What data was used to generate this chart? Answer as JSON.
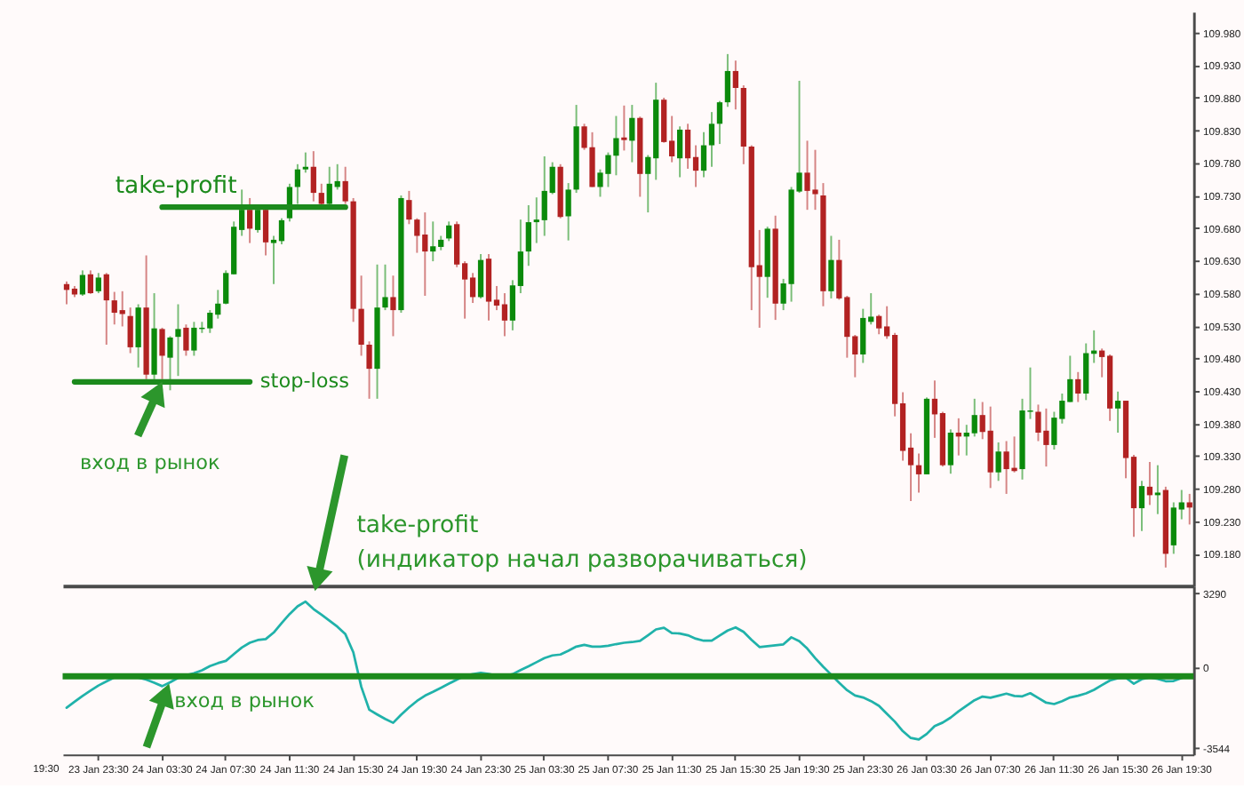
{
  "chart_data": [
    {
      "type": "candlestick",
      "categories": [
        null,
        null,
        null,
        null,
        "23 Jan 23:30",
        null,
        null,
        null,
        null,
        null,
        null,
        null,
        "24 Jan 03:30",
        null,
        null,
        null,
        null,
        null,
        null,
        null,
        "24 Jan 07:30",
        null,
        null,
        null,
        null,
        null,
        null,
        null,
        "24 Jan 11:30",
        null,
        null,
        null,
        null,
        null,
        null,
        null,
        "24 Jan 15:30",
        null,
        null,
        null,
        null,
        null,
        null,
        null,
        "24 Jan 19:30",
        null,
        null,
        null,
        null,
        null,
        null,
        null,
        "24 Jan 23:30",
        null,
        null,
        null,
        null,
        null,
        null,
        null,
        "25 Jan 03:30",
        null,
        null,
        null,
        null,
        null,
        null,
        null,
        "25 Jan 07:30",
        null,
        null,
        null,
        null,
        null,
        null,
        null,
        "25 Jan 11:30",
        null,
        null,
        null,
        null,
        null,
        null,
        null,
        "25 Jan 15:30",
        null,
        null,
        null,
        null,
        null,
        null,
        null,
        "25 Jan 19:30",
        null,
        null,
        null,
        null,
        null,
        null,
        null,
        "25 Jan 23:30",
        null,
        null,
        null,
        null,
        null,
        null,
        null,
        "26 Jan 03:30",
        null,
        null,
        null,
        null,
        null,
        null,
        null,
        "26 Jan 07:30",
        null,
        null,
        null,
        null,
        null,
        null,
        null,
        "26 Jan 11:30",
        null,
        null,
        null,
        null,
        null,
        null,
        null,
        "26 Jan 15:30",
        null,
        null,
        null,
        null,
        null,
        null,
        null,
        "26 Jan 19:30",
        null
      ],
      "ohlc": [
        [
          109.594,
          109.598,
          109.563,
          109.585
        ],
        [
          109.587,
          109.591,
          109.574,
          109.578
        ],
        [
          109.578,
          109.615,
          109.576,
          109.608
        ],
        [
          109.609,
          109.615,
          109.579,
          109.58
        ],
        [
          109.583,
          109.611,
          109.58,
          109.604
        ],
        [
          109.609,
          109.611,
          109.501,
          109.569
        ],
        [
          109.569,
          109.582,
          109.532,
          109.55
        ],
        [
          109.554,
          109.583,
          109.529,
          109.548
        ],
        [
          109.545,
          109.558,
          109.488,
          109.497
        ],
        [
          109.497,
          109.563,
          109.466,
          109.558
        ],
        [
          109.558,
          109.638,
          109.448,
          109.455
        ],
        [
          109.455,
          109.58,
          109.448,
          109.526
        ],
        [
          109.525,
          109.527,
          109.448,
          109.484
        ],
        [
          109.481,
          109.514,
          109.431,
          109.512
        ],
        [
          109.513,
          109.563,
          109.453,
          109.525
        ],
        [
          109.527,
          109.532,
          109.484,
          109.492
        ],
        [
          109.492,
          109.536,
          109.484,
          109.527
        ],
        [
          109.525,
          109.536,
          109.519,
          109.527
        ],
        [
          109.526,
          109.554,
          109.519,
          109.55
        ],
        [
          109.547,
          109.585,
          109.541,
          109.564
        ],
        [
          109.564,
          109.615,
          109.563,
          109.611
        ],
        [
          109.609,
          109.69,
          109.609,
          109.682
        ],
        [
          109.677,
          109.739,
          109.668,
          109.708
        ],
        [
          109.708,
          109.726,
          109.657,
          109.679
        ],
        [
          109.677,
          109.712,
          109.673,
          109.708
        ],
        [
          109.708,
          109.712,
          109.638,
          109.658
        ],
        [
          109.657,
          109.668,
          109.594,
          109.662
        ],
        [
          109.66,
          109.695,
          109.655,
          109.692
        ],
        [
          109.695,
          109.748,
          109.69,
          109.743
        ],
        [
          109.743,
          109.778,
          109.717,
          109.77
        ],
        [
          109.77,
          109.796,
          109.765,
          109.774
        ],
        [
          109.774,
          109.798,
          109.721,
          109.734
        ],
        [
          109.734,
          109.748,
          109.712,
          109.717
        ],
        [
          109.717,
          109.774,
          109.712,
          109.748
        ],
        [
          109.743,
          109.778,
          109.739,
          109.752
        ],
        [
          109.752,
          109.774,
          109.717,
          109.721
        ],
        [
          109.721,
          109.726,
          109.536,
          109.556
        ],
        [
          109.556,
          109.607,
          109.484,
          109.501
        ],
        [
          109.501,
          109.506,
          109.418,
          109.464
        ],
        [
          109.464,
          109.624,
          109.418,
          109.558
        ],
        [
          109.558,
          109.624,
          109.554,
          109.574
        ],
        [
          109.574,
          109.607,
          109.514,
          109.554
        ],
        [
          109.554,
          109.73,
          109.55,
          109.726
        ],
        [
          109.723,
          109.737,
          109.686,
          109.693
        ],
        [
          109.693,
          109.695,
          109.642,
          109.668
        ],
        [
          109.67,
          109.704,
          109.576,
          109.644
        ],
        [
          109.644,
          109.69,
          109.629,
          109.652
        ],
        [
          109.651,
          109.668,
          109.646,
          109.662
        ],
        [
          109.664,
          109.69,
          109.66,
          109.684
        ],
        [
          109.686,
          109.69,
          109.62,
          109.624
        ],
        [
          109.626,
          109.629,
          109.541,
          109.601
        ],
        [
          109.604,
          109.611,
          109.565,
          109.574
        ],
        [
          109.574,
          109.64,
          109.572,
          109.631
        ],
        [
          109.633,
          109.64,
          109.538,
          109.567
        ],
        [
          109.57,
          109.591,
          109.554,
          109.561
        ],
        [
          109.563,
          109.58,
          109.514,
          109.538
        ],
        [
          109.538,
          109.6,
          109.523,
          109.592
        ],
        [
          109.591,
          109.693,
          109.58,
          109.644
        ],
        [
          109.644,
          109.715,
          109.622,
          109.689
        ],
        [
          109.689,
          109.727,
          109.657,
          109.693
        ],
        [
          109.692,
          109.79,
          109.668,
          109.737
        ],
        [
          109.734,
          109.781,
          109.732,
          109.774
        ],
        [
          109.774,
          109.778,
          109.695,
          109.697
        ],
        [
          109.698,
          109.749,
          109.661,
          109.739
        ],
        [
          109.739,
          109.869,
          109.734,
          109.836
        ],
        [
          109.836,
          109.84,
          109.8,
          109.803
        ],
        [
          109.804,
          109.827,
          109.743,
          109.743
        ],
        [
          109.743,
          109.77,
          109.728,
          109.765
        ],
        [
          109.763,
          109.796,
          109.743,
          109.792
        ],
        [
          109.791,
          109.852,
          109.761,
          109.818
        ],
        [
          109.819,
          109.868,
          109.799,
          109.815
        ],
        [
          109.814,
          109.869,
          109.781,
          109.849
        ],
        [
          109.849,
          109.851,
          109.728,
          109.763
        ],
        [
          109.763,
          109.792,
          109.704,
          109.789
        ],
        [
          109.787,
          109.903,
          109.754,
          109.877
        ],
        [
          109.877,
          109.88,
          109.811,
          109.812
        ],
        [
          109.814,
          109.852,
          109.781,
          109.79
        ],
        [
          109.787,
          109.836,
          109.758,
          109.831
        ],
        [
          109.831,
          109.84,
          109.771,
          109.787
        ],
        [
          109.789,
          109.807,
          109.743,
          109.768
        ],
        [
          109.768,
          109.827,
          109.758,
          109.807
        ],
        [
          109.807,
          109.858,
          109.774,
          109.84
        ],
        [
          109.84,
          109.875,
          109.809,
          109.873
        ],
        [
          109.873,
          109.947,
          109.866,
          109.921
        ],
        [
          109.921,
          109.937,
          109.862,
          109.895
        ],
        [
          109.895,
          109.899,
          109.778,
          109.805
        ],
        [
          109.805,
          109.807,
          109.554,
          109.62
        ],
        [
          109.623,
          109.677,
          109.527,
          109.605
        ],
        [
          109.605,
          109.682,
          109.573,
          109.679
        ],
        [
          109.679,
          109.699,
          109.539,
          109.564
        ],
        [
          109.564,
          109.602,
          109.554,
          109.595
        ],
        [
          109.594,
          109.743,
          109.567,
          109.739
        ],
        [
          109.736,
          109.906,
          109.734,
          109.765
        ],
        [
          109.765,
          109.814,
          109.708,
          109.737
        ],
        [
          109.739,
          109.8,
          109.708,
          109.732
        ],
        [
          109.73,
          109.749,
          109.56,
          109.583
        ],
        [
          109.583,
          109.668,
          109.572,
          109.631
        ],
        [
          109.631,
          109.662,
          109.57,
          109.572
        ],
        [
          109.574,
          109.576,
          109.481,
          109.513
        ],
        [
          109.514,
          109.516,
          109.451,
          109.486
        ],
        [
          109.486,
          109.556,
          109.473,
          109.542
        ],
        [
          109.536,
          109.58,
          109.532,
          109.544
        ],
        [
          109.545,
          109.547,
          109.517,
          109.526
        ],
        [
          109.529,
          109.56,
          109.51,
          109.514
        ],
        [
          109.516,
          109.519,
          109.391,
          109.41
        ],
        [
          109.411,
          109.428,
          109.323,
          109.338
        ],
        [
          109.343,
          109.365,
          109.261,
          109.316
        ],
        [
          109.316,
          109.334,
          109.274,
          109.302
        ],
        [
          109.302,
          109.42,
          109.302,
          109.418
        ],
        [
          109.418,
          109.446,
          109.358,
          109.394
        ],
        [
          109.396,
          109.398,
          109.314,
          109.316
        ],
        [
          109.316,
          109.371,
          109.303,
          109.366
        ],
        [
          109.366,
          109.388,
          109.331,
          109.36
        ],
        [
          109.36,
          109.378,
          109.331,
          109.366
        ],
        [
          109.365,
          109.418,
          109.36,
          109.393
        ],
        [
          109.393,
          109.413,
          109.356,
          109.367
        ],
        [
          109.369,
          109.406,
          109.281,
          109.305
        ],
        [
          109.305,
          109.351,
          109.292,
          109.337
        ],
        [
          109.337,
          109.353,
          109.272,
          109.31
        ],
        [
          109.312,
          109.36,
          109.305,
          109.307
        ],
        [
          109.31,
          109.418,
          109.294,
          109.4
        ],
        [
          109.398,
          109.466,
          109.387,
          109.4
        ],
        [
          109.398,
          109.409,
          109.353,
          109.366
        ],
        [
          109.369,
          109.403,
          109.314,
          109.347
        ],
        [
          109.347,
          109.398,
          109.34,
          109.389
        ],
        [
          109.387,
          109.426,
          109.38,
          109.415
        ],
        [
          109.413,
          109.484,
          109.413,
          109.448
        ],
        [
          109.448,
          109.459,
          109.413,
          109.426
        ],
        [
          109.426,
          109.503,
          109.416,
          109.488
        ],
        [
          109.487,
          109.523,
          109.473,
          109.492
        ],
        [
          109.492,
          109.495,
          109.451,
          109.482
        ],
        [
          109.484,
          109.486,
          109.384,
          109.403
        ],
        [
          109.403,
          109.429,
          109.366,
          109.415
        ],
        [
          109.415,
          109.415,
          109.296,
          109.327
        ],
        [
          109.329,
          109.332,
          109.206,
          109.25
        ],
        [
          109.25,
          109.292,
          109.215,
          109.284
        ],
        [
          109.283,
          109.321,
          109.255,
          109.27
        ],
        [
          109.27,
          109.316,
          109.241,
          109.274
        ],
        [
          109.278,
          109.283,
          109.159,
          109.18
        ],
        [
          109.193,
          109.259,
          109.18,
          109.251
        ],
        [
          109.248,
          109.278,
          109.233,
          109.259
        ],
        [
          109.259,
          109.272,
          109.225,
          109.251
        ]
      ],
      "colors": [
        "#b22222",
        "#b22222",
        "#0b8a0b",
        "#b22222",
        "#0b8a0b",
        "#b22222",
        "#b22222",
        "#b22222",
        "#b22222",
        "#0b8a0b",
        "#b22222",
        "#0b8a0b",
        "#b22222",
        "#0b8a0b",
        "#0b8a0b",
        "#b22222",
        "#0b8a0b",
        "#0b8a0b",
        "#0b8a0b",
        "#0b8a0b",
        "#0b8a0b",
        "#0b8a0b",
        "#0b8a0b",
        "#b22222",
        "#0b8a0b",
        "#b22222",
        "#0b8a0b",
        "#0b8a0b",
        "#0b8a0b",
        "#0b8a0b",
        "#0b8a0b",
        "#b22222",
        "#b22222",
        "#0b8a0b",
        "#0b8a0b",
        "#b22222",
        "#b22222",
        "#b22222",
        "#b22222",
        "#0b8a0b",
        "#0b8a0b",
        "#b22222",
        "#0b8a0b",
        "#b22222",
        "#b22222",
        "#b22222",
        "#0b8a0b",
        "#0b8a0b",
        "#0b8a0b",
        "#b22222",
        "#b22222",
        "#b22222",
        "#0b8a0b",
        "#b22222",
        "#b22222",
        "#b22222",
        "#0b8a0b",
        "#0b8a0b",
        "#0b8a0b",
        "#0b8a0b",
        "#0b8a0b",
        "#0b8a0b",
        "#b22222",
        "#0b8a0b",
        "#0b8a0b",
        "#b22222",
        "#b22222",
        "#0b8a0b",
        "#0b8a0b",
        "#0b8a0b",
        "#b22222",
        "#0b8a0b",
        "#b22222",
        "#0b8a0b",
        "#0b8a0b",
        "#b22222",
        "#b22222",
        "#0b8a0b",
        "#b22222",
        "#b22222",
        "#0b8a0b",
        "#0b8a0b",
        "#0b8a0b",
        "#0b8a0b",
        "#b22222",
        "#b22222",
        "#b22222",
        "#b22222",
        "#0b8a0b",
        "#b22222",
        "#0b8a0b",
        "#0b8a0b",
        "#0b8a0b",
        "#b22222",
        "#b22222",
        "#b22222",
        "#0b8a0b",
        "#b22222",
        "#b22222",
        "#b22222",
        "#0b8a0b",
        "#0b8a0b",
        "#b22222",
        "#b22222",
        "#b22222",
        "#b22222",
        "#b22222",
        "#b22222",
        "#0b8a0b",
        "#b22222",
        "#b22222",
        "#0b8a0b",
        "#b22222",
        "#0b8a0b",
        "#0b8a0b",
        "#b22222",
        "#b22222",
        "#0b8a0b",
        "#b22222",
        "#b22222",
        "#0b8a0b",
        "#0b8a0b",
        "#b22222",
        "#b22222",
        "#0b8a0b",
        "#0b8a0b",
        "#0b8a0b",
        "#b22222",
        "#0b8a0b",
        "#0b8a0b",
        "#b22222",
        "#b22222",
        "#0b8a0b",
        "#b22222",
        "#b22222",
        "#0b8a0b",
        "#b22222",
        "#0b8a0b",
        "#b22222",
        "#0b8a0b",
        "#0b8a0b",
        "#b22222"
      ],
      "series": [
        {
          "name": "take-profit",
          "type": "line",
          "color": "#1c8a1c",
          "values": [
            null,
            null,
            null,
            null,
            null,
            null,
            null,
            null,
            null,
            null,
            null,
            null,
            109.712,
            109.712,
            109.712,
            109.712,
            109.712,
            109.712,
            109.712,
            109.712,
            109.712,
            109.712,
            109.712,
            109.712,
            109.712,
            109.712,
            109.712,
            109.712,
            109.712,
            109.712,
            109.712,
            109.712,
            109.712,
            109.712,
            109.712,
            109.712,
            null,
            null,
            null,
            null,
            null,
            null,
            null,
            null,
            null,
            null,
            null,
            null,
            null,
            null,
            null,
            null,
            null,
            null,
            null,
            null,
            null,
            null,
            null,
            null,
            null,
            null,
            null,
            null,
            null,
            null,
            null,
            null,
            null,
            null,
            null,
            null,
            null,
            null,
            null,
            null,
            null,
            null,
            null,
            null,
            null,
            null,
            null,
            null,
            null,
            null,
            null,
            null,
            null,
            null,
            null,
            null,
            null,
            null,
            null,
            null,
            null,
            null,
            null,
            null,
            null,
            null,
            null,
            null,
            null,
            null,
            null,
            null,
            null,
            null,
            null,
            null,
            null,
            null,
            null,
            null,
            null,
            null,
            null,
            null,
            null,
            null,
            null,
            null,
            null,
            null,
            null,
            null,
            null,
            null,
            null,
            null,
            null,
            null,
            null,
            null,
            null,
            null,
            null,
            null,
            null,
            null
          ]
        },
        {
          "name": "stop-loss",
          "type": "line",
          "color": "#1c8a1c",
          "values": [
            null,
            109.444,
            109.444,
            109.444,
            109.444,
            109.444,
            109.444,
            109.444,
            109.444,
            109.444,
            109.444,
            109.444,
            109.444,
            109.444,
            109.444,
            109.444,
            109.444,
            109.444,
            109.444,
            109.444,
            109.444,
            109.444,
            109.444,
            109.444,
            null,
            null,
            null,
            null,
            null,
            null,
            null,
            null,
            null,
            null,
            null,
            null,
            null,
            null,
            null,
            null,
            null,
            null,
            null,
            null,
            null,
            null,
            null,
            null,
            null,
            null,
            null,
            null,
            null,
            null,
            null,
            null,
            null,
            null,
            null,
            null,
            null,
            null,
            null,
            null,
            null,
            null,
            null,
            null,
            null,
            null,
            null,
            null,
            null,
            null,
            null,
            null,
            null,
            null,
            null,
            null,
            null,
            null,
            null,
            null,
            null,
            null,
            null,
            null,
            null,
            null,
            null,
            null,
            null,
            null,
            null,
            null,
            null,
            null,
            null,
            null,
            null,
            null,
            null,
            null,
            null,
            null,
            null,
            null,
            null,
            null,
            null,
            null,
            null,
            null,
            null,
            null,
            null,
            null,
            null,
            null,
            null,
            null,
            null,
            null,
            null,
            null,
            null,
            null,
            null,
            null,
            null,
            null,
            null,
            null,
            null,
            null,
            null,
            null,
            null,
            null,
            null,
            null
          ]
        }
      ],
      "annotations": [
        {
          "text": "вход в рынок",
          "x": "24 Jan 03:30",
          "y": 109.444
        }
      ],
      "ylim": [
        109.131,
        110.012
      ],
      "yticks": [
        {
          "value": 109.18,
          "label": "109.180"
        },
        {
          "value": 109.23,
          "label": "109.230"
        },
        {
          "value": 109.28,
          "label": "109.280"
        },
        {
          "value": 109.33,
          "label": "109.330"
        },
        {
          "value": 109.38,
          "label": "109.380"
        },
        {
          "value": 109.43,
          "label": "109.430"
        },
        {
          "value": 109.48,
          "label": "109.480"
        },
        {
          "value": 109.53,
          "label": "109.530"
        },
        {
          "value": 109.58,
          "label": "109.580"
        },
        {
          "value": 109.63,
          "label": "109.630"
        },
        {
          "value": 109.68,
          "label": "109.680"
        },
        {
          "value": 109.73,
          "label": "109.730"
        },
        {
          "value": 109.78,
          "label": "109.780"
        },
        {
          "value": 109.83,
          "label": "109.830"
        },
        {
          "value": 109.88,
          "label": "109.880"
        },
        {
          "value": 109.93,
          "label": "109.930"
        },
        {
          "value": 109.98,
          "label": "109.980"
        }
      ],
      "tick_labels": "y"
    },
    {
      "type": "line",
      "categories": [
        null,
        null,
        null,
        null,
        "23 Jan 23:30",
        null,
        null,
        null,
        null,
        null,
        null,
        null,
        "24 Jan 03:30",
        null,
        null,
        null,
        null,
        null,
        null,
        null,
        "24 Jan 07:30",
        null,
        null,
        null,
        null,
        null,
        null,
        null,
        "24 Jan 11:30",
        null,
        null,
        null,
        null,
        null,
        null,
        null,
        "24 Jan 15:30",
        null,
        null,
        null,
        null,
        null,
        null,
        null,
        "24 Jan 19:30",
        null,
        null,
        null,
        null,
        null,
        null,
        null,
        "24 Jan 23:30",
        null,
        null,
        null,
        null,
        null,
        null,
        null,
        "25 Jan 03:30",
        null,
        null,
        null,
        null,
        null,
        null,
        null,
        "25 Jan 07:30",
        null,
        null,
        null,
        null,
        null,
        null,
        null,
        "25 Jan 11:30",
        null,
        null,
        null,
        null,
        null,
        null,
        null,
        "25 Jan 15:30",
        null,
        null,
        null,
        null,
        null,
        null,
        null,
        "25 Jan 19:30",
        null,
        null,
        null,
        null,
        null,
        null,
        null,
        "25 Jan 23:30",
        null,
        null,
        null,
        null,
        null,
        null,
        null,
        "26 Jan 03:30",
        null,
        null,
        null,
        null,
        null,
        null,
        null,
        "26 Jan 07:30",
        null,
        null,
        null,
        null,
        null,
        null,
        null,
        "26 Jan 11:30",
        null,
        null,
        null,
        null,
        null,
        null,
        null,
        "26 Jan 15:30",
        null,
        null,
        null,
        null,
        null,
        null,
        null,
        "26 Jan 19:30",
        null
      ],
      "series": [
        {
          "color": "#20b2aa",
          "values": [
            -1770,
            -1510,
            -1250,
            -1020,
            -790,
            -610,
            -430,
            -440,
            -440,
            -440,
            -530,
            -670,
            -820,
            -650,
            -450,
            -340,
            -250,
            -120,
            70,
            200,
            300,
            600,
            890,
            1100,
            1220,
            1260,
            1550,
            1970,
            2370,
            2710,
            2920,
            2590,
            2340,
            2080,
            1810,
            1480,
            680,
            -850,
            -1860,
            -2070,
            -2270,
            -2440,
            -2080,
            -1760,
            -1470,
            -1240,
            -1070,
            -890,
            -710,
            -530,
            -360,
            -290,
            -230,
            -280,
            -360,
            -370,
            -290,
            -110,
            60,
            240,
            420,
            540,
            580,
            750,
            930,
            1010,
            930,
            930,
            970,
            1040,
            1100,
            1130,
            1180,
            1430,
            1690,
            1760,
            1530,
            1510,
            1430,
            1280,
            1190,
            1190,
            1420,
            1640,
            1780,
            1580,
            1230,
            910,
            950,
            990,
            1030,
            1340,
            1170,
            840,
            420,
            40,
            -310,
            -670,
            -1000,
            -1230,
            -1320,
            -1480,
            -1690,
            -2040,
            -2390,
            -2810,
            -3110,
            -3180,
            -2930,
            -2580,
            -2430,
            -2210,
            -1930,
            -1680,
            -1440,
            -1280,
            -1330,
            -1240,
            -1150,
            -1250,
            -1270,
            -1130,
            -1340,
            -1550,
            -1610,
            -1480,
            -1320,
            -1240,
            -1140,
            -980,
            -770,
            -570,
            -470,
            -450,
            -710,
            -510,
            -440,
            -500,
            -600,
            -590,
            -460,
            -340
          ]
        }
      ],
      "ref_lines": [
        {
          "axis": "y",
          "value": -380,
          "color": "#1c8a1c"
        }
      ],
      "annotations": [
        "take-profit\n(индикатор начал разворачиваться)",
        {
          "text": "вход в рынок",
          "x": "24 Jan 03:30",
          "y": -820
        },
        "19:30"
      ],
      "ylim": [
        -3840,
        3620
      ],
      "yticks": [
        3290,
        0,
        -3544
      ]
    }
  ]
}
